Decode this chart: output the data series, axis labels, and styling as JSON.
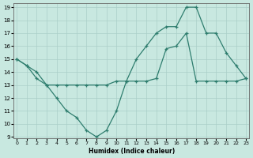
{
  "line1_x": [
    0,
    1,
    2,
    3,
    4,
    5,
    6,
    7,
    8,
    9,
    10,
    11,
    12,
    13,
    14,
    15,
    16,
    17,
    18,
    19,
    20,
    21,
    22,
    23
  ],
  "line1_y": [
    15.0,
    14.5,
    13.5,
    13.0,
    12.0,
    11.0,
    10.5,
    9.5,
    9.0,
    9.5,
    11.0,
    13.3,
    15.0,
    16.0,
    17.0,
    17.5,
    17.5,
    19.0,
    19.0,
    17.0,
    17.0,
    15.5,
    14.5,
    13.5
  ],
  "line2_x": [
    0,
    1,
    2,
    3,
    4,
    5,
    6,
    7,
    8,
    9,
    10,
    11,
    12,
    13,
    14,
    15,
    16,
    17,
    18,
    19,
    20,
    21,
    22,
    23
  ],
  "line2_y": [
    15.0,
    14.5,
    14.0,
    13.0,
    13.0,
    13.0,
    13.0,
    13.0,
    13.0,
    13.0,
    13.3,
    13.3,
    13.3,
    13.3,
    13.5,
    15.8,
    16.0,
    17.0,
    13.3,
    13.3,
    13.3,
    13.3,
    13.3,
    13.5
  ],
  "color": "#2e7d6e",
  "bg_color": "#c8e8e0",
  "grid_color": "#aacfc8",
  "xlabel": "Humidex (Indice chaleur)",
  "ylim": [
    9,
    19
  ],
  "xlim": [
    0,
    23
  ],
  "yticks": [
    9,
    10,
    11,
    12,
    13,
    14,
    15,
    16,
    17,
    18,
    19
  ],
  "xticks": [
    0,
    1,
    2,
    3,
    4,
    5,
    6,
    7,
    8,
    9,
    10,
    11,
    12,
    13,
    14,
    15,
    16,
    17,
    18,
    19,
    20,
    21,
    22,
    23
  ],
  "marker": "+"
}
